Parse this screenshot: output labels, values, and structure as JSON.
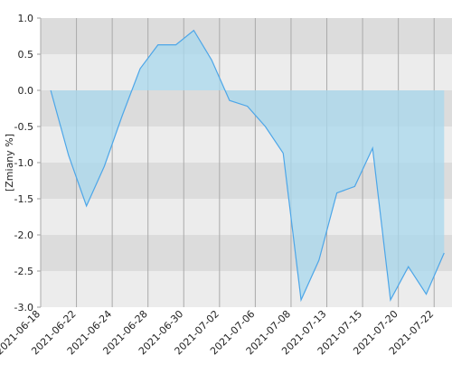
{
  "chart_data": {
    "type": "area",
    "y_label": "[Zmiany %]",
    "x": [
      0.28,
      0.78,
      1.28,
      1.78,
      2.28,
      2.78,
      3.28,
      3.78,
      4.28,
      4.78,
      5.28,
      5.78,
      6.28,
      6.78,
      7.28,
      7.78,
      8.28,
      8.78,
      9.28,
      9.78,
      10.28,
      10.78,
      11.28
    ],
    "values": [
      0,
      -0.9,
      -1.6,
      -1.05,
      -0.35,
      0.3,
      0.63,
      0.63,
      0.83,
      0.42,
      -0.14,
      -0.22,
      -0.5,
      -0.87,
      -2.9,
      -2.35,
      -1.42,
      -1.33,
      -0.8,
      -2.9,
      -2.44,
      -2.82,
      -2.25
    ],
    "color": "#4da6e8",
    "fill": "#a8d8ee",
    "xlim": [
      0,
      11.5
    ],
    "xticks": [
      {
        "value": 0,
        "label": "2021-06-18"
      },
      {
        "value": 1,
        "label": "2021-06-22"
      },
      {
        "value": 2,
        "label": "2021-06-24"
      },
      {
        "value": 3,
        "label": "2021-06-28"
      },
      {
        "value": 4,
        "label": "2021-06-30"
      },
      {
        "value": 5,
        "label": "2021-07-02"
      },
      {
        "value": 6,
        "label": "2021-07-06"
      },
      {
        "value": 7,
        "label": "2021-07-08"
      },
      {
        "value": 8,
        "label": "2021-07-13"
      },
      {
        "value": 9,
        "label": "2021-07-15"
      },
      {
        "value": 10,
        "label": "2021-07-20"
      },
      {
        "value": 11,
        "label": "2021-07-22"
      }
    ],
    "ylim": [
      -3,
      1
    ],
    "yticks": [
      {
        "value": 1,
        "label": "1.0"
      },
      0.5,
      {
        "value": 0,
        "label": "0.0"
      },
      -0.5,
      {
        "value": -1,
        "label": "-1.0"
      },
      -1.5,
      {
        "value": -2,
        "label": "-2.0"
      },
      -2.5,
      {
        "value": -3,
        "label": "-3.0"
      }
    ],
    "band_colors": [
      "#dcdcdc",
      "#ececec"
    ],
    "grid": true
  }
}
